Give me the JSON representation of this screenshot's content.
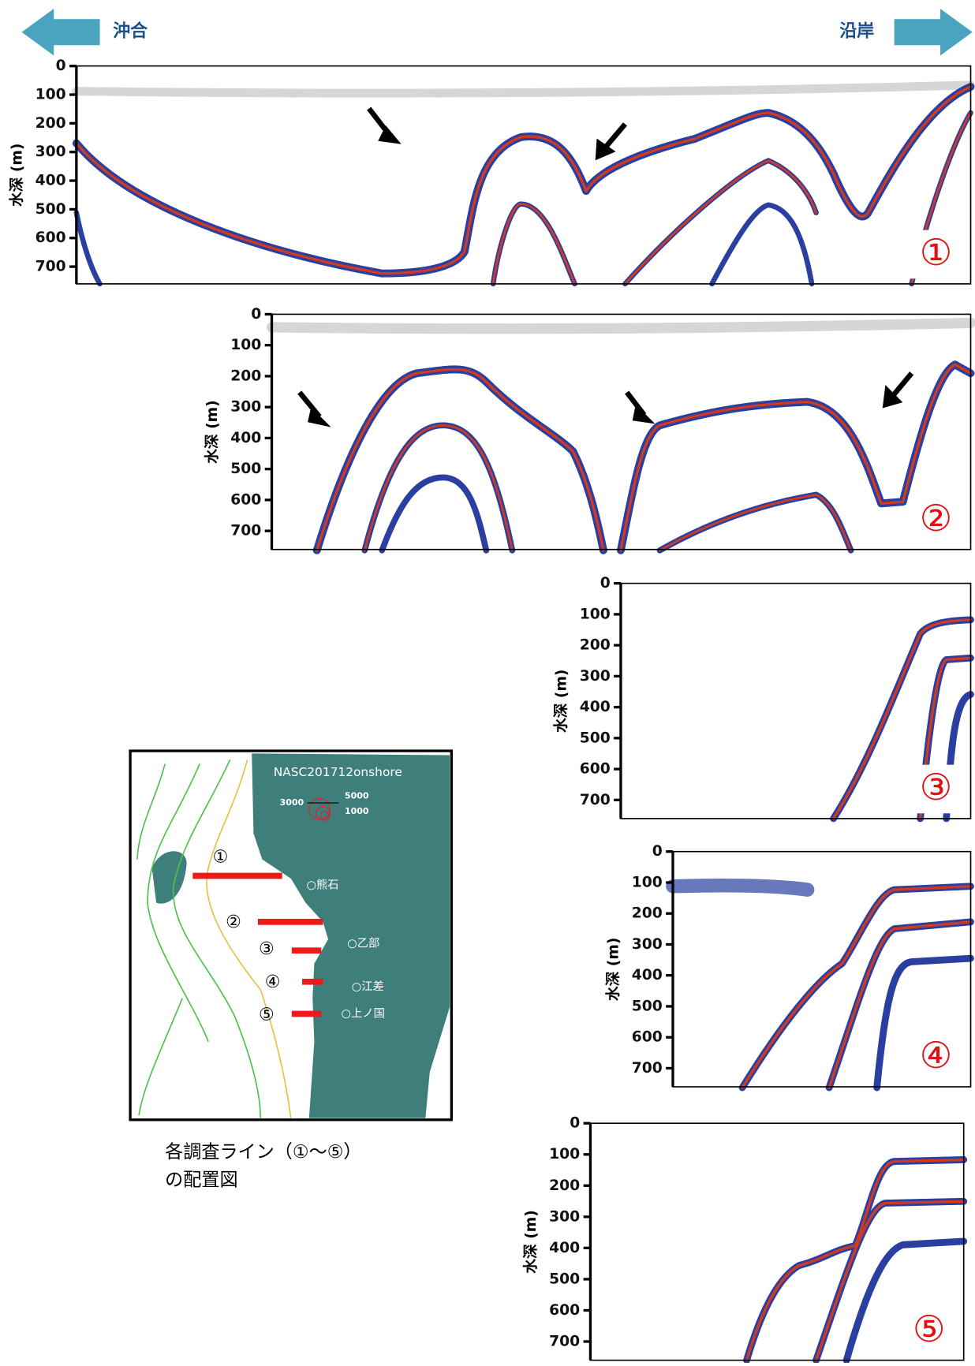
{
  "header": {
    "offshore": "沖合",
    "onshore": "沿岸"
  },
  "panels": [
    {
      "label": "①",
      "y_axis_label": "水深 (m)",
      "ylim": [
        0,
        760
      ],
      "yticks": [
        0,
        100,
        200,
        300,
        400,
        500,
        600,
        700
      ]
    },
    {
      "label": "②",
      "y_axis_label": "水深 (m)",
      "ylim": [
        0,
        760
      ],
      "yticks": [
        0,
        100,
        200,
        300,
        400,
        500,
        600,
        700
      ]
    },
    {
      "label": "③",
      "y_axis_label": "水深 (m)",
      "ylim": [
        0,
        760
      ],
      "yticks": [
        0,
        100,
        200,
        300,
        400,
        500,
        600,
        700
      ]
    },
    {
      "label": "④",
      "y_axis_label": "水深 (m)",
      "ylim": [
        0,
        760
      ],
      "yticks": [
        0,
        100,
        200,
        300,
        400,
        500,
        600,
        700
      ]
    },
    {
      "label": "⑤",
      "y_axis_label": "水深 (m)",
      "ylim": [
        0,
        760
      ],
      "yticks": [
        0,
        100,
        200,
        300,
        400,
        500,
        600,
        700
      ]
    }
  ],
  "map": {
    "title": "NASC201712onshore",
    "legend": [
      "5000",
      "3000",
      "1000"
    ],
    "lines": [
      "①",
      "②",
      "③",
      "④",
      "⑤"
    ],
    "places": [
      "○熊石",
      "○乙部",
      "○江差",
      "○上ノ国"
    ]
  },
  "caption": [
    "各調査ライン（①～⑤）",
    "の配置図"
  ]
}
